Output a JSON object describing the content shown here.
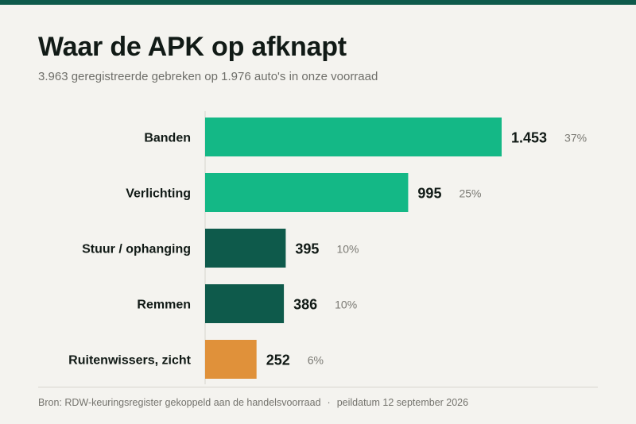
{
  "header": {
    "title": "Waar de APK op afknapt",
    "subtitle": "3.963 geregistreerde gebreken op 1.976 auto's in onze voorraad"
  },
  "chart_data": {
    "type": "bar",
    "orientation": "horizontal",
    "categories": [
      "Banden",
      "Verlichting",
      "Stuur / ophanging",
      "Remmen",
      "Ruitenwissers, zicht"
    ],
    "values": [
      1453,
      995,
      395,
      386,
      252
    ],
    "value_labels": [
      "1.453",
      "995",
      "395",
      "386",
      "252"
    ],
    "share_labels": [
      "37%",
      "25%",
      "10%",
      "10%",
      "6%"
    ],
    "bar_colors": [
      "#14b886",
      "#14b886",
      "#0e5a4b",
      "#0e5a4b",
      "#e0913a"
    ],
    "title": "Waar de APK op afknapt",
    "xlabel": "",
    "ylabel": "",
    "xlim": [
      0,
      1453
    ],
    "grid": false,
    "legend": "none"
  },
  "footer": {
    "source": "Bron: RDW-keuringsregister gekoppeld aan de handelsvoorraad",
    "separator": "·",
    "date": "peildatum 12 september 2026"
  },
  "colors": {
    "accent": "#0e5a4b",
    "highlight": "#14b886",
    "warning": "#e0913a",
    "background": "#f4f3ef"
  }
}
